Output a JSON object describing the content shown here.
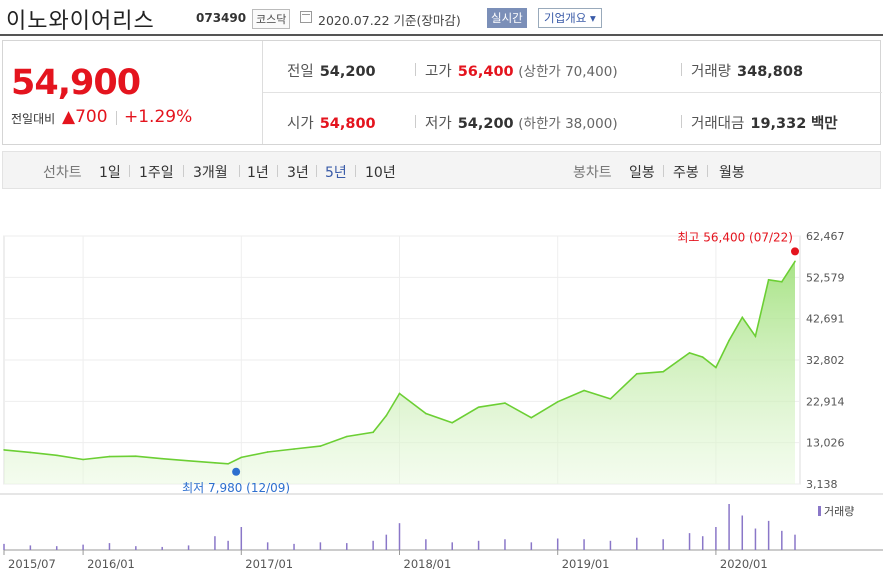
{
  "header": {
    "name": "이노와이어리스",
    "code": "073490",
    "market": "코스닥",
    "date": "2020.07.22 기준(장마감)",
    "realtime_label": "실시간",
    "company_menu": "기업개요 ▾"
  },
  "quote": {
    "price": "54,900",
    "change_label": "전일대비",
    "change_value": "▲700",
    "change_pct": "+1.29%",
    "prev_label": "전일",
    "prev_value": "54,200",
    "high_label": "고가",
    "high_value": "56,400",
    "high_note": "(상한가 70,400)",
    "volume_label": "거래량",
    "volume_value": "348,808",
    "open_label": "시가",
    "open_value": "54,800",
    "low_label": "저가",
    "low_value": "54,200",
    "low_note": "(하한가 38,000)",
    "amount_label": "거래대금",
    "amount_value": "19,332",
    "amount_unit": "백만"
  },
  "periods": {
    "label": "선차트",
    "items": [
      "1일",
      "1주일",
      "3개월",
      "1년",
      "3년",
      "5년",
      "10년"
    ],
    "selected": "5년"
  },
  "candles": {
    "label": "봉차트",
    "items": [
      "일봉",
      "주봉",
      "월봉"
    ]
  },
  "colors": {
    "up": "#e4141e",
    "line": "#6ccf34",
    "selected": "#3a5ba8",
    "volume": "#8a77c8"
  },
  "chart_data": {
    "type": "area",
    "x_tick_labels": [
      "2015/07",
      "2016/01",
      "2017/01",
      "2018/01",
      "2019/01",
      "2020/01"
    ],
    "y_tick_labels": [
      "62,467",
      "52,579",
      "42,691",
      "32,802",
      "22,914",
      "13,026",
      "3,138"
    ],
    "ylim": [
      3138,
      62467
    ],
    "x": [
      "2015/07",
      "2015/09",
      "2015/11",
      "2016/01",
      "2016/03",
      "2016/05",
      "2016/07",
      "2016/09",
      "2016/11",
      "2016/12",
      "2017/01",
      "2017/03",
      "2017/05",
      "2017/07",
      "2017/09",
      "2017/11",
      "2017/12",
      "2018/01",
      "2018/03",
      "2018/05",
      "2018/07",
      "2018/09",
      "2018/11",
      "2019/01",
      "2019/03",
      "2019/05",
      "2019/07",
      "2019/09",
      "2019/11",
      "2019/12",
      "2020/01",
      "2020/02",
      "2020/03",
      "2020/04",
      "2020/05",
      "2020/06",
      "2020/07"
    ],
    "series": [
      {
        "values": [
          11300,
          10700,
          10000,
          9000,
          9700,
          9800,
          9200,
          8700,
          8200,
          7980,
          9500,
          10800,
          11500,
          12200,
          14500,
          15500,
          19500,
          24800,
          20000,
          17800,
          21500,
          22500,
          19000,
          22800,
          25500,
          23500,
          29500,
          30000,
          34500,
          33500,
          31000,
          37500,
          43000,
          38500,
          52000,
          51500,
          56400
        ]
      }
    ],
    "annotations": {
      "high": "최고 56,400 (07/22)",
      "low": "최저 7,980 (12/09)"
    },
    "volume_label": "거래량",
    "volume": [
      8,
      6,
      5,
      7,
      9,
      5,
      4,
      6,
      18,
      12,
      30,
      10,
      8,
      10,
      9,
      12,
      20,
      35,
      14,
      10,
      12,
      14,
      10,
      15,
      14,
      12,
      16,
      14,
      22,
      18,
      30,
      60,
      45,
      28,
      38,
      25,
      20
    ],
    "grid": true,
    "legend": "top-right"
  }
}
